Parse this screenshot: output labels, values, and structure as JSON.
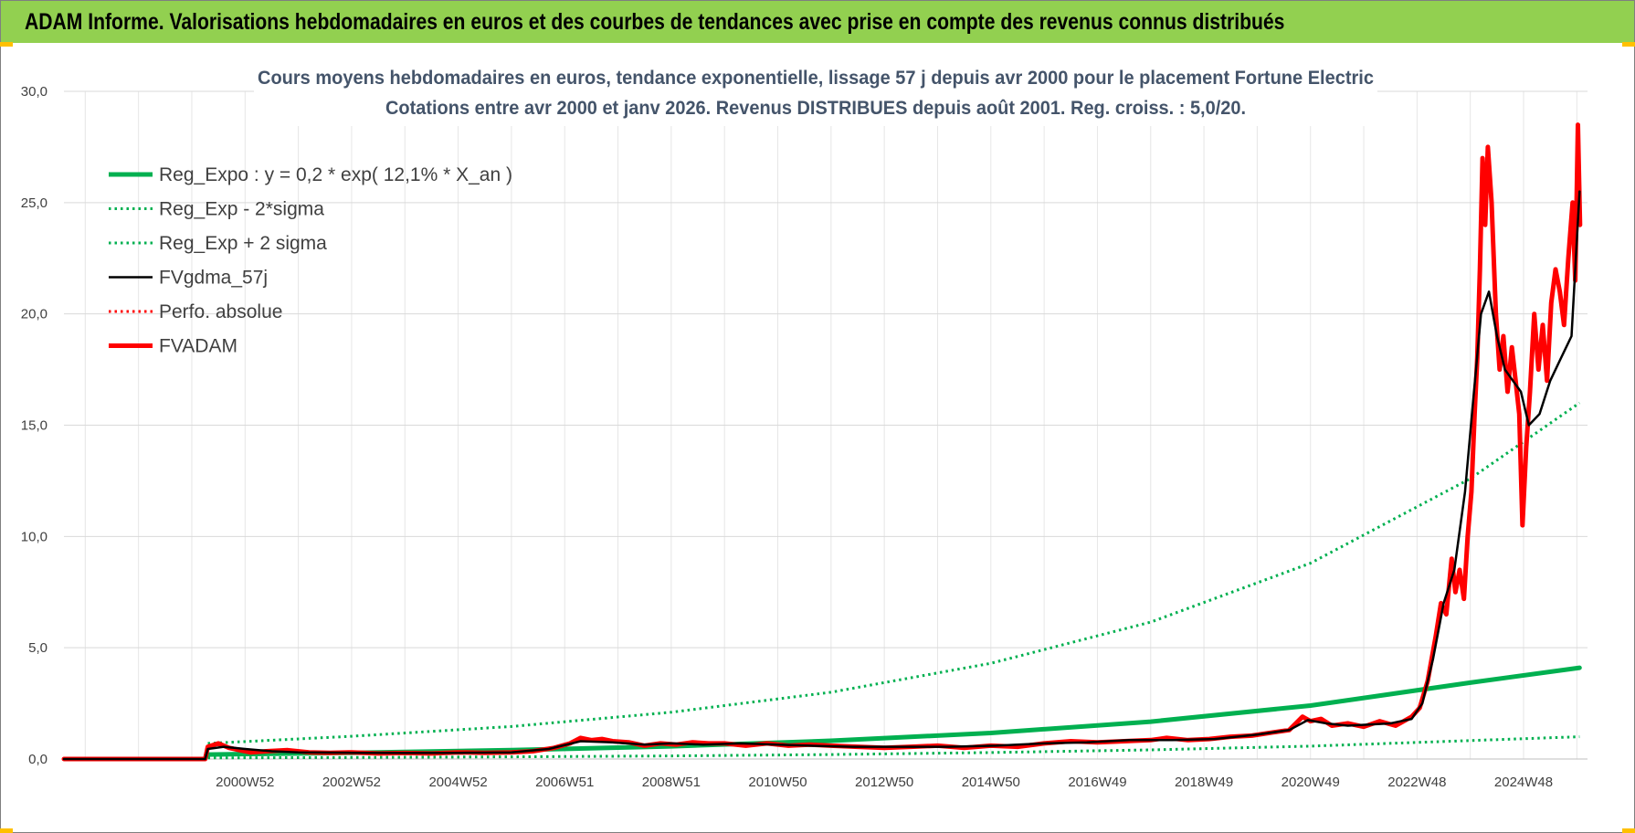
{
  "banner": {
    "title": "ADAM Informe. Valorisations hebdomadaires en euros et des courbes de tendances avec prise en compte des revenus connus distribués",
    "color": "#92d050"
  },
  "chart_data": {
    "type": "line",
    "title": "Cours moyens hebdomadaires en euros, tendance exponentielle, lissage 57 j depuis avr 2000 pour le placement Fortune Electric",
    "subtitle": "Cotations entre avr 2000 et janv 2026.  Revenus DISTRIBUES depuis août 2001. Reg. croiss. : 5,0/20.",
    "xlabel": "",
    "ylabel": "",
    "ylim": [
      0,
      30
    ],
    "xlim": [
      1997.6,
      2026.2
    ],
    "yticks": [
      "0,0",
      "5,0",
      "10,0",
      "15,0",
      "20,0",
      "25,0",
      "30,0"
    ],
    "xticks": [
      {
        "label": "2000W52",
        "x": 2001.0
      },
      {
        "label": "2002W52",
        "x": 2003.0
      },
      {
        "label": "2004W52",
        "x": 2005.0
      },
      {
        "label": "2006W51",
        "x": 2007.0
      },
      {
        "label": "2008W51",
        "x": 2009.0
      },
      {
        "label": "2010W50",
        "x": 2011.0
      },
      {
        "label": "2012W50",
        "x": 2013.0
      },
      {
        "label": "2014W50",
        "x": 2015.0
      },
      {
        "label": "2016W49",
        "x": 2017.0
      },
      {
        "label": "2018W49",
        "x": 2019.0
      },
      {
        "label": "2020W49",
        "x": 2021.0
      },
      {
        "label": "2022W48",
        "x": 2023.0
      },
      {
        "label": "2024W48",
        "x": 2025.0
      }
    ],
    "grid": true,
    "legend_position": "top-left",
    "series": [
      {
        "name": "Reg_Expo : y = 0,2 * exp( 12,1% *  X_an )",
        "color": "#00b050",
        "style": "solid-thick",
        "x": [
          2000.3,
          2003,
          2006,
          2009,
          2012,
          2015,
          2018,
          2021,
          2024,
          2026.05
        ],
        "y": [
          0.2,
          0.28,
          0.4,
          0.57,
          0.82,
          1.17,
          1.68,
          2.4,
          3.43,
          4.1
        ]
      },
      {
        "name": "Reg_Exp - 2*sigma",
        "color": "#00b050",
        "style": "dotted",
        "x": [
          2000.3,
          2003,
          2006,
          2009,
          2012,
          2015,
          2018,
          2021,
          2024,
          2026.05
        ],
        "y": [
          0.05,
          0.07,
          0.1,
          0.14,
          0.2,
          0.29,
          0.41,
          0.58,
          0.83,
          1.0
        ]
      },
      {
        "name": "Reg_Exp + 2 sigma",
        "color": "#00b050",
        "style": "dotted",
        "x": [
          2000.3,
          2003,
          2006,
          2009,
          2012,
          2015,
          2018,
          2021,
          2024,
          2026.05
        ],
        "y": [
          0.7,
          1.02,
          1.46,
          2.1,
          3.0,
          4.3,
          6.15,
          8.8,
          12.6,
          16.0
        ]
      },
      {
        "name": "FVgdma_57j",
        "color": "#000000",
        "style": "solid",
        "x": [
          1997.6,
          2000.25,
          2000.3,
          2000.6,
          2001.0,
          2001.5,
          2002.0,
          2003.0,
          2004.0,
          2005.0,
          2006.0,
          2006.7,
          2007.3,
          2007.9,
          2008.5,
          2009.0,
          2009.6,
          2010.3,
          2011.0,
          2011.6,
          2012.4,
          2013.3,
          2014.2,
          2015.1,
          2016.0,
          2016.8,
          2017.6,
          2018.4,
          2019.2,
          2020.0,
          2020.6,
          2020.95,
          2021.3,
          2021.7,
          2022.1,
          2022.5,
          2022.9,
          2023.1,
          2023.3,
          2023.5,
          2023.7,
          2023.9,
          2024.05,
          2024.2,
          2024.35,
          2024.5,
          2024.65,
          2024.8,
          2024.95,
          2025.1,
          2025.3,
          2025.5,
          2025.7,
          2025.9,
          2026.05
        ],
        "y": [
          0,
          0,
          0.45,
          0.55,
          0.45,
          0.35,
          0.3,
          0.28,
          0.27,
          0.28,
          0.3,
          0.45,
          0.8,
          0.75,
          0.65,
          0.7,
          0.65,
          0.7,
          0.65,
          0.6,
          0.55,
          0.55,
          0.55,
          0.6,
          0.7,
          0.75,
          0.85,
          0.85,
          0.9,
          1.1,
          1.3,
          1.75,
          1.6,
          1.5,
          1.55,
          1.6,
          1.8,
          2.5,
          4.5,
          7.0,
          8.5,
          12.0,
          16.0,
          20.0,
          21.0,
          19.0,
          17.5,
          17.0,
          16.5,
          15.0,
          15.5,
          17.0,
          18.0,
          19.0,
          25.5
        ]
      },
      {
        "name": "Perfo. absolue",
        "color": "#ff0000",
        "style": "dotted",
        "x": [
          1997.6,
          2000.25
        ],
        "y": [
          0,
          0
        ]
      },
      {
        "name": "FVADAM",
        "color": "#ff0000",
        "style": "solid-thick",
        "x": [
          1997.6,
          2000.25,
          2000.3,
          2000.5,
          2000.7,
          2000.9,
          2001.1,
          2001.4,
          2001.8,
          2002.2,
          2002.6,
          2003.0,
          2003.5,
          2004.0,
          2004.5,
          2005.0,
          2005.5,
          2006.0,
          2006.4,
          2006.8,
          2007.1,
          2007.3,
          2007.5,
          2007.7,
          2007.9,
          2008.2,
          2008.5,
          2008.8,
          2009.1,
          2009.4,
          2009.7,
          2010.0,
          2010.4,
          2010.8,
          2011.2,
          2011.6,
          2012.0,
          2012.5,
          2013.0,
          2013.5,
          2014.0,
          2014.5,
          2015.0,
          2015.5,
          2016.0,
          2016.5,
          2017.0,
          2017.5,
          2018.0,
          2018.3,
          2018.7,
          2019.1,
          2019.5,
          2019.9,
          2020.3,
          2020.6,
          2020.85,
          2021.0,
          2021.2,
          2021.4,
          2021.7,
          2022.0,
          2022.3,
          2022.6,
          2022.9,
          2023.05,
          2023.2,
          2023.35,
          2023.45,
          2023.55,
          2023.65,
          2023.72,
          2023.8,
          2023.88,
          2023.95,
          2024.02,
          2024.08,
          2024.13,
          2024.18,
          2024.23,
          2024.28,
          2024.33,
          2024.4,
          2024.48,
          2024.55,
          2024.62,
          2024.7,
          2024.78,
          2024.85,
          2024.92,
          2024.98,
          2025.05,
          2025.12,
          2025.2,
          2025.28,
          2025.36,
          2025.44,
          2025.52,
          2025.6,
          2025.68,
          2025.76,
          2025.84,
          2025.92,
          2025.97,
          2026.02,
          2026.06
        ],
        "y": [
          0,
          0,
          0.55,
          0.7,
          0.5,
          0.4,
          0.3,
          0.35,
          0.4,
          0.3,
          0.28,
          0.3,
          0.25,
          0.27,
          0.25,
          0.3,
          0.28,
          0.3,
          0.35,
          0.5,
          0.7,
          0.95,
          0.85,
          0.9,
          0.8,
          0.75,
          0.6,
          0.7,
          0.65,
          0.75,
          0.7,
          0.7,
          0.6,
          0.7,
          0.6,
          0.65,
          0.6,
          0.55,
          0.5,
          0.55,
          0.6,
          0.5,
          0.6,
          0.55,
          0.7,
          0.8,
          0.75,
          0.8,
          0.85,
          0.95,
          0.85,
          0.9,
          1.0,
          1.05,
          1.2,
          1.3,
          1.9,
          1.7,
          1.8,
          1.5,
          1.6,
          1.45,
          1.7,
          1.5,
          1.9,
          2.3,
          3.5,
          5.5,
          7.0,
          6.5,
          9.0,
          7.5,
          8.5,
          7.2,
          10.0,
          12.0,
          15.5,
          18.0,
          22.0,
          27.0,
          24.0,
          27.5,
          25.0,
          20.0,
          17.5,
          19.0,
          16.5,
          18.5,
          17.0,
          15.5,
          10.5,
          14.0,
          16.5,
          20.0,
          17.5,
          19.5,
          17.0,
          20.5,
          22.0,
          21.0,
          19.5,
          22.5,
          25.0,
          21.5,
          28.5,
          24.0
        ]
      }
    ]
  }
}
